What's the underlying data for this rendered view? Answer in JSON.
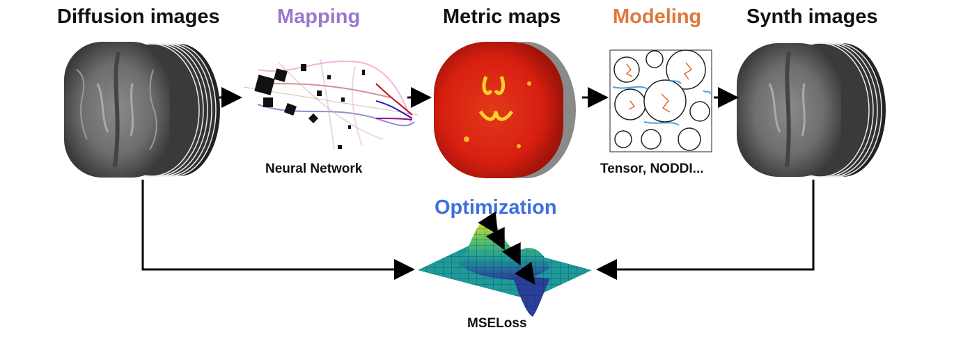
{
  "stages": {
    "diffusion": {
      "title": "Diffusion images",
      "color": "#111111"
    },
    "mapping": {
      "title": "Mapping",
      "color": "#9b78cf",
      "caption": "Neural Network"
    },
    "metric": {
      "title": "Metric maps",
      "color": "#111111"
    },
    "modeling": {
      "title": "Modeling",
      "color": "#e0763a",
      "caption": "Tensor, NODDI..."
    },
    "synth": {
      "title": "Synth images",
      "color": "#111111"
    }
  },
  "optimization": {
    "title": "Optimization",
    "color": "#3d6fe0",
    "caption": "MSELoss"
  }
}
